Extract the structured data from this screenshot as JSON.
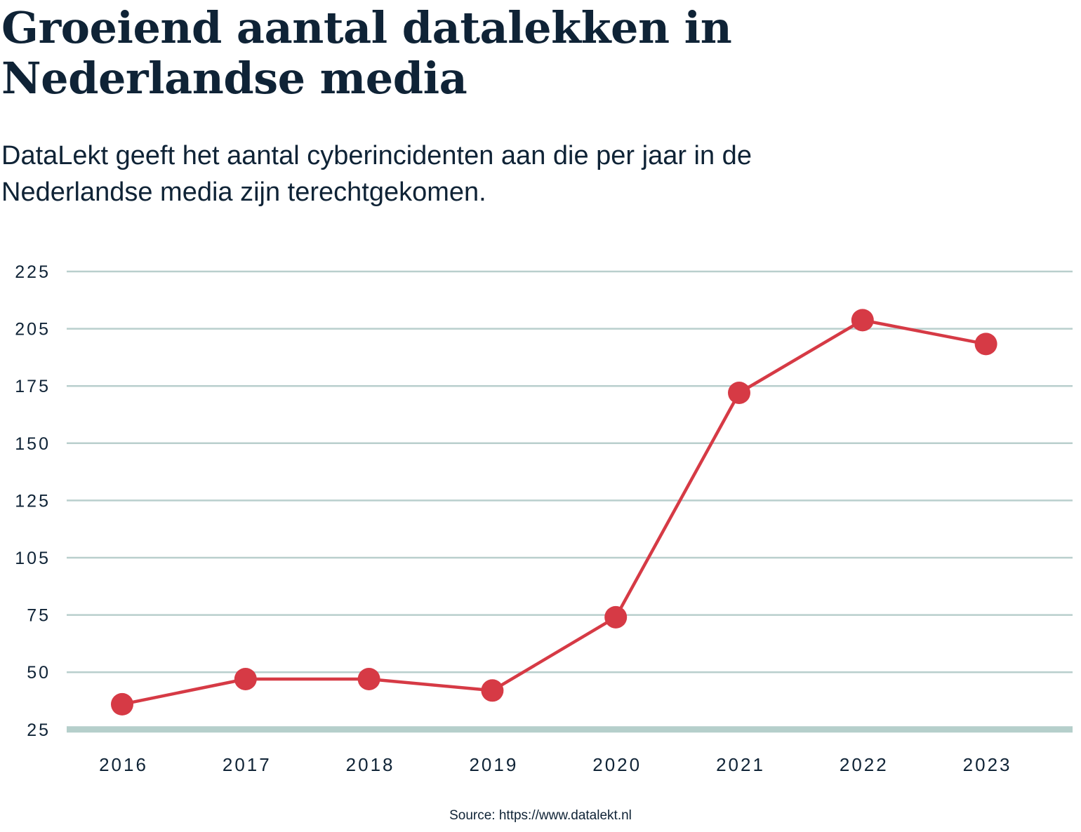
{
  "title": "Groeiend aantal datalekken in Nederlandse media",
  "subtitle": "DataLekt geeft het aantal cyberincidenten aan die per jaar in de Nederlandse media zijn terechtgekomen.",
  "source": "Source: https://www.datalekt.nl",
  "colors": {
    "text": "#0f2336",
    "line": "#d63a45",
    "grid": "#b9cfcd",
    "baseline": "#b5cfcb"
  },
  "chart_data": {
    "type": "line",
    "title": "Groeiend aantal datalekken in Nederlandse media",
    "xlabel": "",
    "ylabel": "",
    "categories": [
      "2016",
      "2017",
      "2018",
      "2019",
      "2020",
      "2021",
      "2022",
      "2023"
    ],
    "y_tick_labels": [
      "225",
      "205",
      "175",
      "150",
      "125",
      "105",
      "75",
      "50",
      "25"
    ],
    "series": [
      {
        "values": [
          36,
          47,
          47,
          42,
          74,
          172,
          208,
          197
        ]
      }
    ],
    "ylim": [
      25,
      225
    ],
    "grid": true,
    "legend": "none"
  }
}
